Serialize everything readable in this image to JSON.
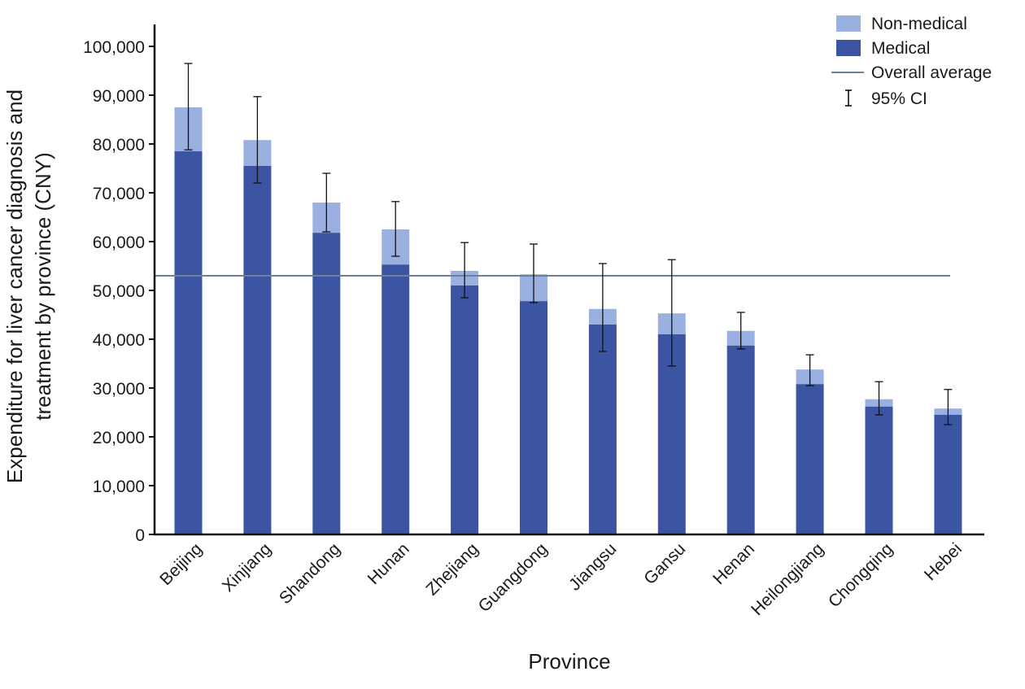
{
  "chart_data": {
    "type": "bar",
    "stacked": true,
    "xlabel": "Province",
    "ylabel_lines": [
      "Expenditure for liver cancer diagnosis and",
      "treatment by province (CNY)"
    ],
    "ylim": [
      0,
      100000
    ],
    "yticks": [
      0,
      10000,
      20000,
      30000,
      40000,
      50000,
      60000,
      70000,
      80000,
      90000,
      100000
    ],
    "ytick_labels": [
      "0",
      "10,000",
      "20,000",
      "30,000",
      "40,000",
      "50,000",
      "60,000",
      "70,000",
      "80,000",
      "90,000",
      "100,000"
    ],
    "categories": [
      "Beijing",
      "Xinjiang",
      "Shandong",
      "Hunan",
      "Zhejiang",
      "Guangdong",
      "Jiangsu",
      "Gansu",
      "Henan",
      "Heilongjiang",
      "Chongqing",
      "Hebei"
    ],
    "series": [
      {
        "name": "Medical",
        "color": "#3b55a3",
        "values": [
          78500,
          75500,
          61800,
          55300,
          51000,
          47800,
          43000,
          41000,
          38700,
          30800,
          26200,
          24500
        ]
      },
      {
        "name": "Non-medical",
        "color": "#9ab0e0",
        "values": [
          9000,
          5300,
          6200,
          7200,
          3000,
          5500,
          3200,
          4300,
          3000,
          3000,
          1500,
          1300
        ]
      }
    ],
    "ci": {
      "name": "95% CI",
      "low": [
        78800,
        72000,
        62000,
        57000,
        48500,
        47500,
        37500,
        34500,
        38000,
        30500,
        24500,
        22500
      ],
      "high": [
        96500,
        89700,
        74000,
        68200,
        59800,
        59500,
        55500,
        56300,
        45500,
        36800,
        31300,
        29700
      ]
    },
    "overall_average": {
      "name": "Overall average",
      "value": 53000,
      "color": "#6e7f96"
    },
    "legend": {
      "position": "top-right",
      "items": [
        {
          "label": "Non-medical",
          "kind": "bar",
          "color": "#9ab0e0"
        },
        {
          "label": "Medical",
          "kind": "bar",
          "color": "#3b55a3"
        },
        {
          "label": "Overall average",
          "kind": "line",
          "color": "#6e7f96"
        },
        {
          "label": "95% CI",
          "kind": "errorbar",
          "color": "#000000"
        }
      ]
    }
  }
}
